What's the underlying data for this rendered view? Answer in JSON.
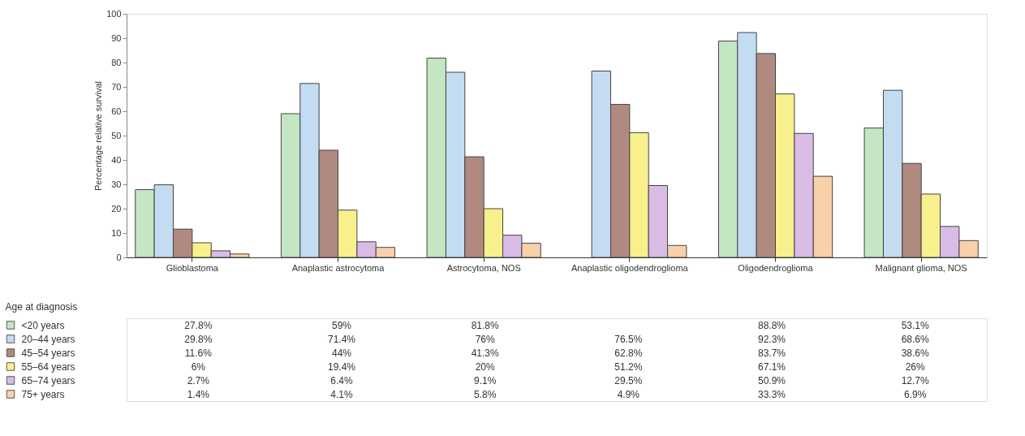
{
  "chart_data": {
    "type": "bar",
    "ylabel": "Percentage relative survival",
    "legend_title": "Age at diagnosis",
    "categories": [
      "Glioblastoma",
      "Anaplastic astrocytoma",
      "Astrocytoma, NOS",
      "Anaplastic oligodendroglioma",
      "Oligodendroglioma",
      "Malignant glioma, NOS"
    ],
    "series": [
      {
        "name": "<20 years",
        "color": "#c4e6c2",
        "values": [
          27.8,
          59,
          81.8,
          null,
          88.8,
          53.1
        ],
        "value_labels": [
          "27.8%",
          "59%",
          "81.8%",
          null,
          "88.8%",
          "53.1%"
        ]
      },
      {
        "name": "20–44 years",
        "color": "#c4dcf2",
        "values": [
          29.8,
          71.4,
          76,
          76.5,
          92.3,
          68.6
        ],
        "value_labels": [
          "29.8%",
          "71.4%",
          "76%",
          "76.5%",
          "92.3%",
          "68.6%"
        ]
      },
      {
        "name": "45–54 years",
        "color": "#b08a80",
        "values": [
          11.6,
          44,
          41.3,
          62.8,
          83.7,
          38.6
        ],
        "value_labels": [
          "11.6%",
          "44%",
          "41.3%",
          "62.8%",
          "83.7%",
          "38.6%"
        ]
      },
      {
        "name": "55–64 years",
        "color": "#f8f08c",
        "values": [
          6,
          19.4,
          20,
          51.2,
          67.1,
          26
        ],
        "value_labels": [
          "6%",
          "19.4%",
          "20%",
          "51.2%",
          "67.1%",
          "26%"
        ]
      },
      {
        "name": "65–74 years",
        "color": "#d8bce6",
        "values": [
          2.7,
          6.4,
          9.1,
          29.5,
          50.9,
          12.7
        ],
        "value_labels": [
          "2.7%",
          "6.4%",
          "9.1%",
          "29.5%",
          "50.9%",
          "12.7%"
        ]
      },
      {
        "name": "75+ years",
        "color": "#f8d0aa",
        "values": [
          1.4,
          4.1,
          5.8,
          4.9,
          33.3,
          6.9
        ],
        "value_labels": [
          "1.4%",
          "4.1%",
          "5.8%",
          "4.9%",
          "33.3%",
          "6.9%"
        ]
      }
    ],
    "ylim": [
      0,
      100
    ],
    "yticks": [
      0,
      10,
      20,
      30,
      40,
      50,
      60,
      70,
      80,
      90,
      100
    ],
    "grid": false,
    "legend": "bottom left"
  }
}
